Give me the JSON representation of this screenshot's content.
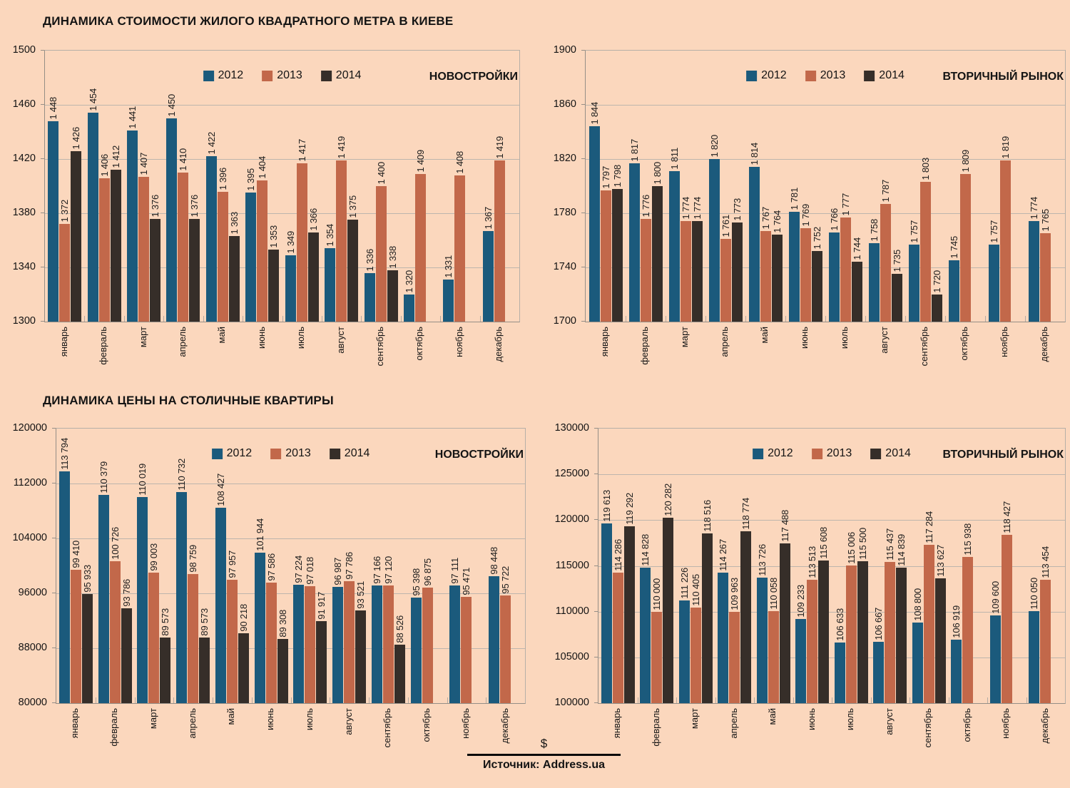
{
  "page": {
    "background": "#fbd7bd",
    "currency_symbol": "$",
    "source_label": "Источник: Address.ua"
  },
  "legend_years": [
    "2012",
    "2013",
    "2014"
  ],
  "series_colors": {
    "2012": "#1b5a7c",
    "2013": "#c2684a",
    "2014": "#362e29"
  },
  "months": [
    "январь",
    "февраль",
    "март",
    "апрель",
    "май",
    "июнь",
    "июль",
    "август",
    "сентябрь",
    "октябрь",
    "ноябрь",
    "декабрь"
  ],
  "chart_data": [
    {
      "type": "bar",
      "title": "ДИНАМИКА СТОИМОСТИ ЖИЛОГО КВАДРАТНОГО МЕТРА В КИЕВЕ",
      "market_label": "НОВОСТРОЙКИ",
      "legend_position": "top-center",
      "grid": true,
      "ylim": [
        1300,
        1500
      ],
      "ystep": 40,
      "categories": [
        "январь",
        "февраль",
        "март",
        "апрель",
        "май",
        "июнь",
        "июль",
        "август",
        "сентябрь",
        "октябрь",
        "ноябрь",
        "декабрь"
      ],
      "series": [
        {
          "name": "2012",
          "color": "#1b5a7c",
          "values": [
            1448,
            1454,
            1441,
            1450,
            1422,
            1395,
            1349,
            1354,
            1336,
            1320,
            1331,
            1367
          ]
        },
        {
          "name": "2013",
          "color": "#c2684a",
          "values": [
            1372,
            1406,
            1407,
            1410,
            1396,
            1404,
            1417,
            1419,
            1400,
            1409,
            1408,
            1419
          ]
        },
        {
          "name": "2014",
          "color": "#362e29",
          "values": [
            1426,
            1412,
            1376,
            1376,
            1363,
            1353,
            1366,
            1375,
            1338,
            null,
            null,
            null
          ]
        }
      ]
    },
    {
      "type": "bar",
      "title": "",
      "market_label": "ВТОРИЧНЫЙ РЫНОК",
      "legend_position": "top-center",
      "grid": true,
      "ylim": [
        1700,
        1900
      ],
      "ystep": 40,
      "categories": [
        "январь",
        "февраль",
        "март",
        "апрель",
        "май",
        "июнь",
        "июль",
        "август",
        "сентябрь",
        "октябрь",
        "ноябрь",
        "декабрь"
      ],
      "series": [
        {
          "name": "2012",
          "color": "#1b5a7c",
          "values": [
            1844,
            1817,
            1811,
            1820,
            1814,
            1781,
            1766,
            1758,
            1757,
            1745,
            1757,
            1774
          ]
        },
        {
          "name": "2013",
          "color": "#c2684a",
          "values": [
            1797,
            1776,
            1774,
            1761,
            1767,
            1769,
            1777,
            1787,
            1803,
            1809,
            1819,
            1765
          ]
        },
        {
          "name": "2014",
          "color": "#362e29",
          "values": [
            1798,
            1800,
            1774,
            1773,
            1764,
            1752,
            1744,
            1735,
            1720,
            null,
            null,
            null
          ]
        }
      ]
    },
    {
      "type": "bar",
      "title": "ДИНАМИКА ЦЕНЫ НА СТОЛИЧНЫЕ КВАРТИРЫ",
      "market_label": "НОВОСТРОЙКИ",
      "legend_position": "top-center",
      "grid": true,
      "ylim": [
        80000,
        120000
      ],
      "ystep": 8000,
      "categories": [
        "январь",
        "февраль",
        "март",
        "апрель",
        "май",
        "июнь",
        "июль",
        "август",
        "сентябрь",
        "октябрь",
        "ноябрь",
        "декабрь"
      ],
      "series": [
        {
          "name": "2012",
          "color": "#1b5a7c",
          "values": [
            113794,
            110379,
            110019,
            110732,
            108427,
            101944,
            97224,
            96987,
            97166,
            95398,
            97111,
            98448
          ]
        },
        {
          "name": "2013",
          "color": "#c2684a",
          "values": [
            99410,
            100726,
            99003,
            98759,
            97957,
            97586,
            97018,
            97786,
            97120,
            96875,
            95471,
            95722
          ]
        },
        {
          "name": "2014",
          "color": "#362e29",
          "values": [
            95933,
            93786,
            89573,
            89573,
            90218,
            89308,
            91917,
            93521,
            88526,
            null,
            null,
            null
          ]
        }
      ]
    },
    {
      "type": "bar",
      "title": "",
      "market_label": "ВТОРИЧНЫЙ РЫНОК",
      "legend_position": "top-center",
      "grid": true,
      "ylim": [
        100000,
        130000
      ],
      "ystep": 5000,
      "categories": [
        "январь",
        "февраль",
        "март",
        "апрель",
        "май",
        "июнь",
        "июль",
        "август",
        "сентябрь",
        "октябрь",
        "ноябрь",
        "декабрь"
      ],
      "series": [
        {
          "name": "2012",
          "color": "#1b5a7c",
          "values": [
            119613,
            114828,
            111226,
            114267,
            113726,
            109233,
            106633,
            106667,
            108800,
            106919,
            109600,
            110050
          ]
        },
        {
          "name": "2013",
          "color": "#c2684a",
          "values": [
            114286,
            110000,
            110405,
            109963,
            110058,
            113513,
            115006,
            115437,
            117284,
            115938,
            118427,
            113454
          ]
        },
        {
          "name": "2014",
          "color": "#362e29",
          "values": [
            119292,
            120282,
            118516,
            118774,
            117488,
            115608,
            115500,
            114839,
            113627,
            null,
            null,
            null
          ]
        }
      ]
    }
  ]
}
